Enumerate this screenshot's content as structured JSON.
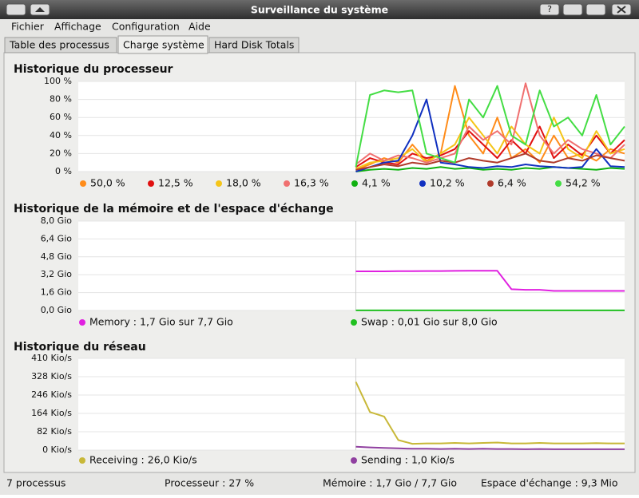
{
  "window": {
    "title": "Surveillance du système",
    "help_button": "?"
  },
  "menu": [
    "Fichier",
    "Affichage",
    "Configuration",
    "Aide"
  ],
  "tabs": [
    "Table des processus",
    "Charge système",
    "Hard Disk Totals"
  ],
  "active_tab": 1,
  "panels": [
    {
      "title": "Historique du processeur",
      "ylim": [
        0,
        100
      ],
      "yticks": [
        {
          "value": 0,
          "label": "0 %"
        },
        {
          "value": 20,
          "label": "20 %"
        },
        {
          "value": 40,
          "label": "40 %"
        },
        {
          "value": 60,
          "label": "60 %"
        },
        {
          "value": 80,
          "label": "80 %"
        },
        {
          "value": 100,
          "label": "100 %"
        }
      ],
      "series": [
        {
          "name": "50,0 %",
          "color": "#ff8c1a",
          "values": [
            2,
            8,
            15,
            10,
            30,
            12,
            20,
            95,
            40,
            20,
            60,
            15,
            25,
            10,
            40,
            15,
            20,
            12,
            25,
            20
          ]
        },
        {
          "name": "12,5 %",
          "color": "#e01010",
          "values": [
            5,
            15,
            10,
            8,
            20,
            15,
            18,
            25,
            45,
            30,
            15,
            35,
            20,
            50,
            15,
            30,
            18,
            40,
            20,
            35
          ]
        },
        {
          "name": "18,0 %",
          "color": "#f5c518",
          "values": [
            3,
            10,
            12,
            15,
            25,
            10,
            20,
            30,
            60,
            40,
            20,
            50,
            30,
            20,
            60,
            25,
            15,
            45,
            20,
            25
          ]
        },
        {
          "name": "16,3 %",
          "color": "#f07070",
          "values": [
            8,
            20,
            12,
            18,
            15,
            10,
            15,
            20,
            50,
            35,
            45,
            30,
            98,
            40,
            20,
            35,
            25,
            20,
            15,
            30
          ]
        },
        {
          "name": "4,1 %",
          "color": "#10b010",
          "values": [
            0,
            2,
            3,
            2,
            4,
            3,
            5,
            3,
            4,
            2,
            3,
            2,
            4,
            3,
            5,
            4,
            3,
            2,
            4,
            3
          ]
        },
        {
          "name": "10,2 %",
          "color": "#1030c0",
          "values": [
            0,
            5,
            10,
            12,
            40,
            80,
            10,
            8,
            5,
            4,
            6,
            5,
            8,
            6,
            5,
            4,
            5,
            25,
            6,
            5
          ]
        },
        {
          "name": "6,4 %",
          "color": "#b03a2a",
          "values": [
            2,
            5,
            8,
            6,
            10,
            8,
            12,
            10,
            15,
            12,
            10,
            15,
            20,
            12,
            10,
            15,
            12,
            18,
            15,
            12
          ]
        },
        {
          "name": "54,2 %",
          "color": "#44dd44",
          "values": [
            5,
            85,
            90,
            88,
            90,
            20,
            15,
            10,
            80,
            60,
            95,
            40,
            30,
            90,
            50,
            60,
            40,
            85,
            30,
            50
          ]
        }
      ]
    },
    {
      "title": "Historique de la mémoire et de l'espace d'échange",
      "ylim": [
        0,
        8
      ],
      "yticks": [
        {
          "value": 0,
          "label": "0,0 Gio"
        },
        {
          "value": 1.6,
          "label": "1,6 Gio"
        },
        {
          "value": 3.2,
          "label": "3,2 Gio"
        },
        {
          "value": 4.8,
          "label": "4,8 Gio"
        },
        {
          "value": 6.4,
          "label": "6,4 Gio"
        },
        {
          "value": 8,
          "label": "8,0 Gio"
        }
      ],
      "series": [
        {
          "name": "Memory : 1,7 Gio sur 7,7 Gio",
          "color": "#e020e0",
          "values": [
            3.5,
            3.5,
            3.5,
            3.52,
            3.52,
            3.53,
            3.53,
            3.54,
            3.55,
            3.55,
            3.55,
            1.9,
            1.85,
            1.85,
            1.75,
            1.75,
            1.75,
            1.75,
            1.75,
            1.75
          ]
        },
        {
          "name": "Swap : 0,01 Gio sur 8,0 Gio",
          "color": "#20c020",
          "values": [
            0.01,
            0.01,
            0.01,
            0.01,
            0.01,
            0.01,
            0.01,
            0.01,
            0.01,
            0.01,
            0.01,
            0.01,
            0.01,
            0.01,
            0.01,
            0.01,
            0.01,
            0.01,
            0.01,
            0.01
          ]
        }
      ]
    },
    {
      "title": "Historique du réseau",
      "ylim": [
        0,
        410
      ],
      "yticks": [
        {
          "value": 0,
          "label": "0 Kio/s"
        },
        {
          "value": 82,
          "label": "82 Kio/s"
        },
        {
          "value": 164,
          "label": "164 Kio/s"
        },
        {
          "value": 246,
          "label": "246 Kio/s"
        },
        {
          "value": 328,
          "label": "328 Kio/s"
        },
        {
          "value": 410,
          "label": "410 Kio/s"
        }
      ],
      "series": [
        {
          "name": "Receiving : 26,0 Kio/s",
          "color": "#c8b838",
          "values": [
            305,
            170,
            150,
            45,
            28,
            30,
            30,
            32,
            30,
            32,
            34,
            30,
            30,
            32,
            30,
            30,
            30,
            31,
            30,
            30
          ]
        },
        {
          "name": "Sending : 1,0 Kio/s",
          "color": "#9040a0",
          "values": [
            15,
            12,
            10,
            8,
            6,
            6,
            5,
            6,
            5,
            6,
            5,
            5,
            4,
            5,
            4,
            4,
            4,
            4,
            4,
            4
          ]
        }
      ]
    }
  ],
  "status": [
    "7 processus",
    "Processeur : 27 %",
    "Mémoire : 1,7 Gio / 7,7 Gio",
    "Espace d'échange : 9,3 Mio"
  ]
}
